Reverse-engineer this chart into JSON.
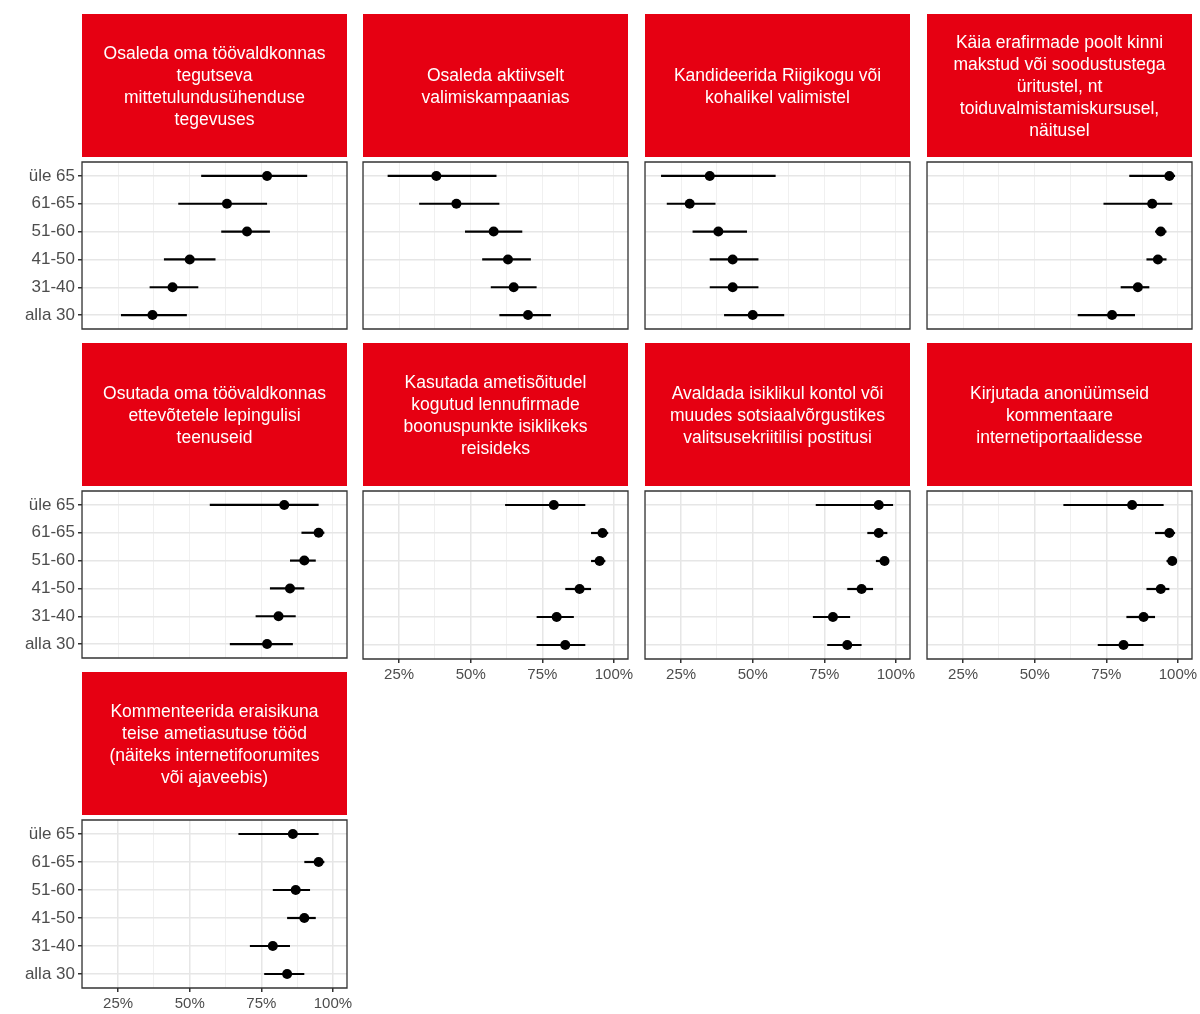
{
  "chart_data": [
    {
      "type": "scatter",
      "title": "Osaleda oma töövaldkonnas tegutseva mittetulundusühenduse tegevuses",
      "orientation": "horizontal",
      "categories": [
        "üle 65",
        "61-65",
        "51-60",
        "41-50",
        "31-40",
        "alla 30"
      ],
      "values": [
        77,
        63,
        70,
        50,
        44,
        37
      ],
      "errors": [
        [
          54,
          91
        ],
        [
          46,
          77
        ],
        [
          61,
          78
        ],
        [
          41,
          59
        ],
        [
          36,
          53
        ],
        [
          26,
          49
        ]
      ],
      "color": "#000000",
      "xlim": [
        12.4,
        104.9
      ],
      "xticks": [
        {
          "value": 12.5,
          "label": null
        },
        {
          "value": 25,
          "label": null
        },
        {
          "value": 37.5,
          "label": null
        },
        {
          "value": 50,
          "label": null
        },
        {
          "value": 62.5,
          "label": null
        },
        {
          "value": 75,
          "label": null
        },
        {
          "value": 87.5,
          "label": null
        },
        {
          "value": 100,
          "label": null
        }
      ],
      "grid": true,
      "tick_labels": "y"
    },
    {
      "type": "scatter",
      "title": "Osaleda aktiivselt valimiskampaanias",
      "orientation": "horizontal",
      "categories": [
        null,
        null,
        null,
        null,
        null,
        null
      ],
      "values": [
        38,
        45,
        58,
        63,
        65,
        70
      ],
      "errors": [
        [
          21,
          59
        ],
        [
          32,
          60
        ],
        [
          48,
          68
        ],
        [
          54,
          71
        ],
        [
          57,
          73
        ],
        [
          60,
          78
        ]
      ],
      "color": "#000000",
      "xlim": [
        12.4,
        104.9
      ],
      "xticks": [
        {
          "value": 12.5,
          "label": null
        },
        {
          "value": 25,
          "label": null
        },
        {
          "value": 37.5,
          "label": null
        },
        {
          "value": 50,
          "label": null
        },
        {
          "value": 62.5,
          "label": null
        },
        {
          "value": 75,
          "label": null
        },
        {
          "value": 87.5,
          "label": null
        },
        {
          "value": 100,
          "label": null
        }
      ],
      "grid": true,
      "tick_labels": false
    },
    {
      "type": "scatter",
      "title": "Kandideerida Riigikogu või kohalikel valimistel",
      "orientation": "horizontal",
      "categories": [
        null,
        null,
        null,
        null,
        null,
        null
      ],
      "values": [
        35,
        28,
        38,
        43,
        43,
        50
      ],
      "errors": [
        [
          18,
          58
        ],
        [
          20,
          37
        ],
        [
          29,
          48
        ],
        [
          35,
          52
        ],
        [
          35,
          52
        ],
        [
          40,
          61
        ]
      ],
      "color": "#000000",
      "xlim": [
        12.4,
        104.9
      ],
      "xticks": [
        {
          "value": 12.5,
          "label": null
        },
        {
          "value": 25,
          "label": null
        },
        {
          "value": 37.5,
          "label": null
        },
        {
          "value": 50,
          "label": null
        },
        {
          "value": 62.5,
          "label": null
        },
        {
          "value": 75,
          "label": null
        },
        {
          "value": 87.5,
          "label": null
        },
        {
          "value": 100,
          "label": null
        }
      ],
      "grid": true,
      "tick_labels": false
    },
    {
      "type": "scatter",
      "title": "Käia erafirmade poolt kinni makstud või soodustustega üritustel, nt toiduvalmistamiskursusel, näitusel",
      "orientation": "horizontal",
      "categories": [
        null,
        null,
        null,
        null,
        null,
        null
      ],
      "values": [
        97,
        91,
        94,
        93,
        86,
        77
      ],
      "errors": [
        [
          83,
          99
        ],
        [
          74,
          98
        ],
        [
          92,
          96
        ],
        [
          89,
          96
        ],
        [
          80,
          90
        ],
        [
          65,
          85
        ]
      ],
      "color": "#000000",
      "xlim": [
        12.4,
        104.9
      ],
      "xticks": [
        {
          "value": 12.5,
          "label": null
        },
        {
          "value": 25,
          "label": null
        },
        {
          "value": 37.5,
          "label": null
        },
        {
          "value": 50,
          "label": null
        },
        {
          "value": 62.5,
          "label": null
        },
        {
          "value": 75,
          "label": null
        },
        {
          "value": 87.5,
          "label": null
        },
        {
          "value": 100,
          "label": null
        }
      ],
      "grid": true,
      "tick_labels": false
    },
    {
      "type": "scatter",
      "title": "Osutada oma töövaldkonnas ettevõtetele lepingulisi teenuseid",
      "orientation": "horizontal",
      "categories": [
        "üle 65",
        "61-65",
        "51-60",
        "41-50",
        "31-40",
        "alla 30"
      ],
      "values": [
        83,
        95,
        90,
        85,
        81,
        77
      ],
      "errors": [
        [
          57,
          95
        ],
        [
          89,
          97
        ],
        [
          85,
          94
        ],
        [
          78,
          90
        ],
        [
          73,
          87
        ],
        [
          64,
          86
        ]
      ],
      "color": "#000000",
      "xlim": [
        12.4,
        104.9
      ],
      "xticks": [
        {
          "value": 12.5,
          "label": null
        },
        {
          "value": 25,
          "label": null
        },
        {
          "value": 37.5,
          "label": null
        },
        {
          "value": 50,
          "label": null
        },
        {
          "value": 62.5,
          "label": null
        },
        {
          "value": 75,
          "label": null
        },
        {
          "value": 87.5,
          "label": null
        },
        {
          "value": 100,
          "label": null
        }
      ],
      "grid": true,
      "tick_labels": "y"
    },
    {
      "type": "scatter",
      "title": "Kasutada ametisõitudel kogutud lennufirmade boonuspunkte isiklikeks reisideks",
      "orientation": "horizontal",
      "categories": [
        null,
        null,
        null,
        null,
        null,
        null
      ],
      "values": [
        79,
        96,
        95,
        88,
        80,
        83
      ],
      "errors": [
        [
          62,
          90
        ],
        [
          92,
          98
        ],
        [
          92,
          97
        ],
        [
          83,
          92
        ],
        [
          73,
          86
        ],
        [
          73,
          90
        ]
      ],
      "color": "#000000",
      "xlim": [
        12.4,
        104.9
      ],
      "xticks": [
        {
          "value": 12.5,
          "label": null
        },
        {
          "value": 25,
          "label": "25%"
        },
        {
          "value": 37.5,
          "label": null
        },
        {
          "value": 50,
          "label": "50%"
        },
        {
          "value": 62.5,
          "label": null
        },
        {
          "value": 75,
          "label": "75%"
        },
        {
          "value": 87.5,
          "label": null
        },
        {
          "value": 100,
          "label": "100%"
        }
      ],
      "grid": true,
      "tick_labels": "x"
    },
    {
      "type": "scatter",
      "title": "Avaldada isiklikul kontol või muudes sotsiaalvõrgustikes valitsusekriitilisi postitusi",
      "orientation": "horizontal",
      "categories": [
        null,
        null,
        null,
        null,
        null,
        null
      ],
      "values": [
        94,
        94,
        96,
        88,
        78,
        83
      ],
      "errors": [
        [
          72,
          99
        ],
        [
          90,
          97
        ],
        [
          93,
          97
        ],
        [
          83,
          92
        ],
        [
          71,
          84
        ],
        [
          76,
          88
        ]
      ],
      "color": "#000000",
      "xlim": [
        12.4,
        104.9
      ],
      "xticks": [
        {
          "value": 12.5,
          "label": null
        },
        {
          "value": 25,
          "label": "25%"
        },
        {
          "value": 37.5,
          "label": null
        },
        {
          "value": 50,
          "label": "50%"
        },
        {
          "value": 62.5,
          "label": null
        },
        {
          "value": 75,
          "label": "75%"
        },
        {
          "value": 87.5,
          "label": null
        },
        {
          "value": 100,
          "label": "100%"
        }
      ],
      "grid": true,
      "tick_labels": "x"
    },
    {
      "type": "scatter",
      "title": "Kirjutada anonüümseid kommentaare internetiportaalidesse",
      "orientation": "horizontal",
      "categories": [
        null,
        null,
        null,
        null,
        null,
        null
      ],
      "values": [
        84,
        97,
        98,
        94,
        88,
        81
      ],
      "errors": [
        [
          60,
          95
        ],
        [
          92,
          99
        ],
        [
          96,
          99
        ],
        [
          89,
          97
        ],
        [
          82,
          92
        ],
        [
          72,
          88
        ]
      ],
      "color": "#000000",
      "xlim": [
        12.4,
        104.9
      ],
      "xticks": [
        {
          "value": 12.5,
          "label": null
        },
        {
          "value": 25,
          "label": "25%"
        },
        {
          "value": 37.5,
          "label": null
        },
        {
          "value": 50,
          "label": "50%"
        },
        {
          "value": 62.5,
          "label": null
        },
        {
          "value": 75,
          "label": "75%"
        },
        {
          "value": 87.5,
          "label": null
        },
        {
          "value": 100,
          "label": "100%"
        }
      ],
      "grid": true,
      "tick_labels": "x"
    },
    {
      "type": "scatter",
      "title": "Kommenteerida eraisikuna teise ametiasutuse tööd (näiteks internetifoorumites või ajaveebis)",
      "orientation": "horizontal",
      "categories": [
        "üle 65",
        "61-65",
        "51-60",
        "41-50",
        "31-40",
        "alla 30"
      ],
      "values": [
        86,
        95,
        87,
        90,
        79,
        84
      ],
      "errors": [
        [
          67,
          95
        ],
        [
          90,
          97
        ],
        [
          79,
          92
        ],
        [
          84,
          94
        ],
        [
          71,
          85
        ],
        [
          76,
          90
        ]
      ],
      "color": "#000000",
      "xlim": [
        12.4,
        104.9
      ],
      "xticks": [
        {
          "value": 12.5,
          "label": null
        },
        {
          "value": 25,
          "label": "25%"
        },
        {
          "value": 37.5,
          "label": null
        },
        {
          "value": 50,
          "label": "50%"
        },
        {
          "value": 62.5,
          "label": null
        },
        {
          "value": 75,
          "label": "75%"
        },
        {
          "value": 87.5,
          "label": null
        },
        {
          "value": 100,
          "label": "100%"
        }
      ],
      "grid": true
    }
  ]
}
